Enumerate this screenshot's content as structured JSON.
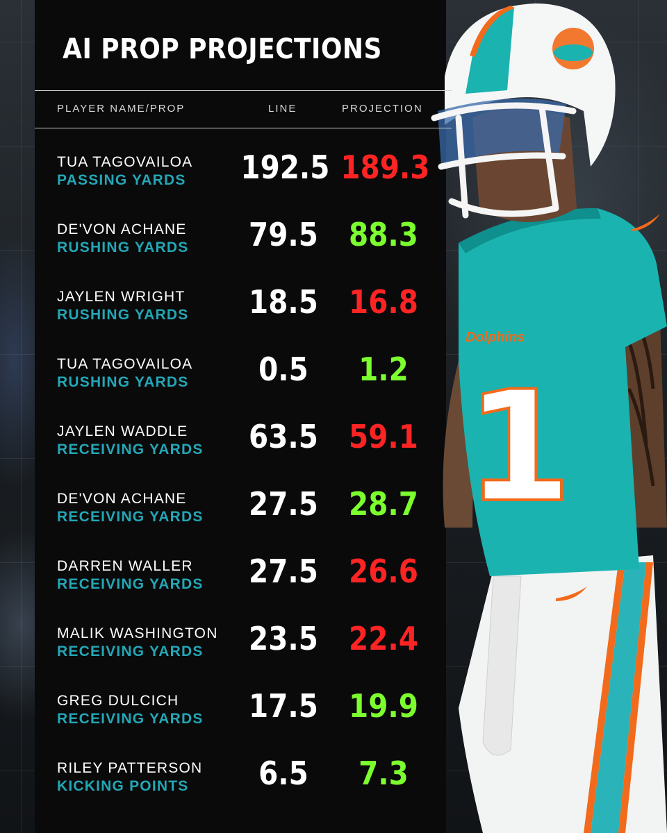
{
  "title": "AI PROP PROJECTIONS",
  "headers": {
    "player": "PLAYER NAME/PROP",
    "line": "LINE",
    "projection": "PROJECTION"
  },
  "colors": {
    "under": "#ff2424",
    "over": "#7cff2e",
    "prop": "#23a7b6"
  },
  "jersey": {
    "team": "Dolphins",
    "number": "1"
  },
  "rows": [
    {
      "name": "TUA TAGOVAILOA",
      "prop": "PASSING YARDS",
      "line": "192.5",
      "projection": "189.3",
      "result": "under"
    },
    {
      "name": "DE'VON ACHANE",
      "prop": "RUSHING YARDS",
      "line": "79.5",
      "projection": "88.3",
      "result": "over"
    },
    {
      "name": "JAYLEN WRIGHT",
      "prop": "RUSHING YARDS",
      "line": "18.5",
      "projection": "16.8",
      "result": "under"
    },
    {
      "name": "TUA TAGOVAILOA",
      "prop": "RUSHING YARDS",
      "line": "0.5",
      "projection": "1.2",
      "result": "over"
    },
    {
      "name": "JAYLEN WADDLE",
      "prop": "RECEIVING YARDS",
      "line": "63.5",
      "projection": "59.1",
      "result": "under"
    },
    {
      "name": "DE'VON ACHANE",
      "prop": "RECEIVING YARDS",
      "line": "27.5",
      "projection": "28.7",
      "result": "over"
    },
    {
      "name": "DARREN WALLER",
      "prop": "RECEIVING YARDS",
      "line": "27.5",
      "projection": "26.6",
      "result": "under"
    },
    {
      "name": "MALIK WASHINGTON",
      "prop": "RECEIVING YARDS",
      "line": "23.5",
      "projection": "22.4",
      "result": "under"
    },
    {
      "name": "GREG DULCICH",
      "prop": "RECEIVING YARDS",
      "line": "17.5",
      "projection": "19.9",
      "result": "over"
    },
    {
      "name": "RILEY PATTERSON",
      "prop": "KICKING POINTS",
      "line": "6.5",
      "projection": "7.3",
      "result": "over"
    }
  ]
}
